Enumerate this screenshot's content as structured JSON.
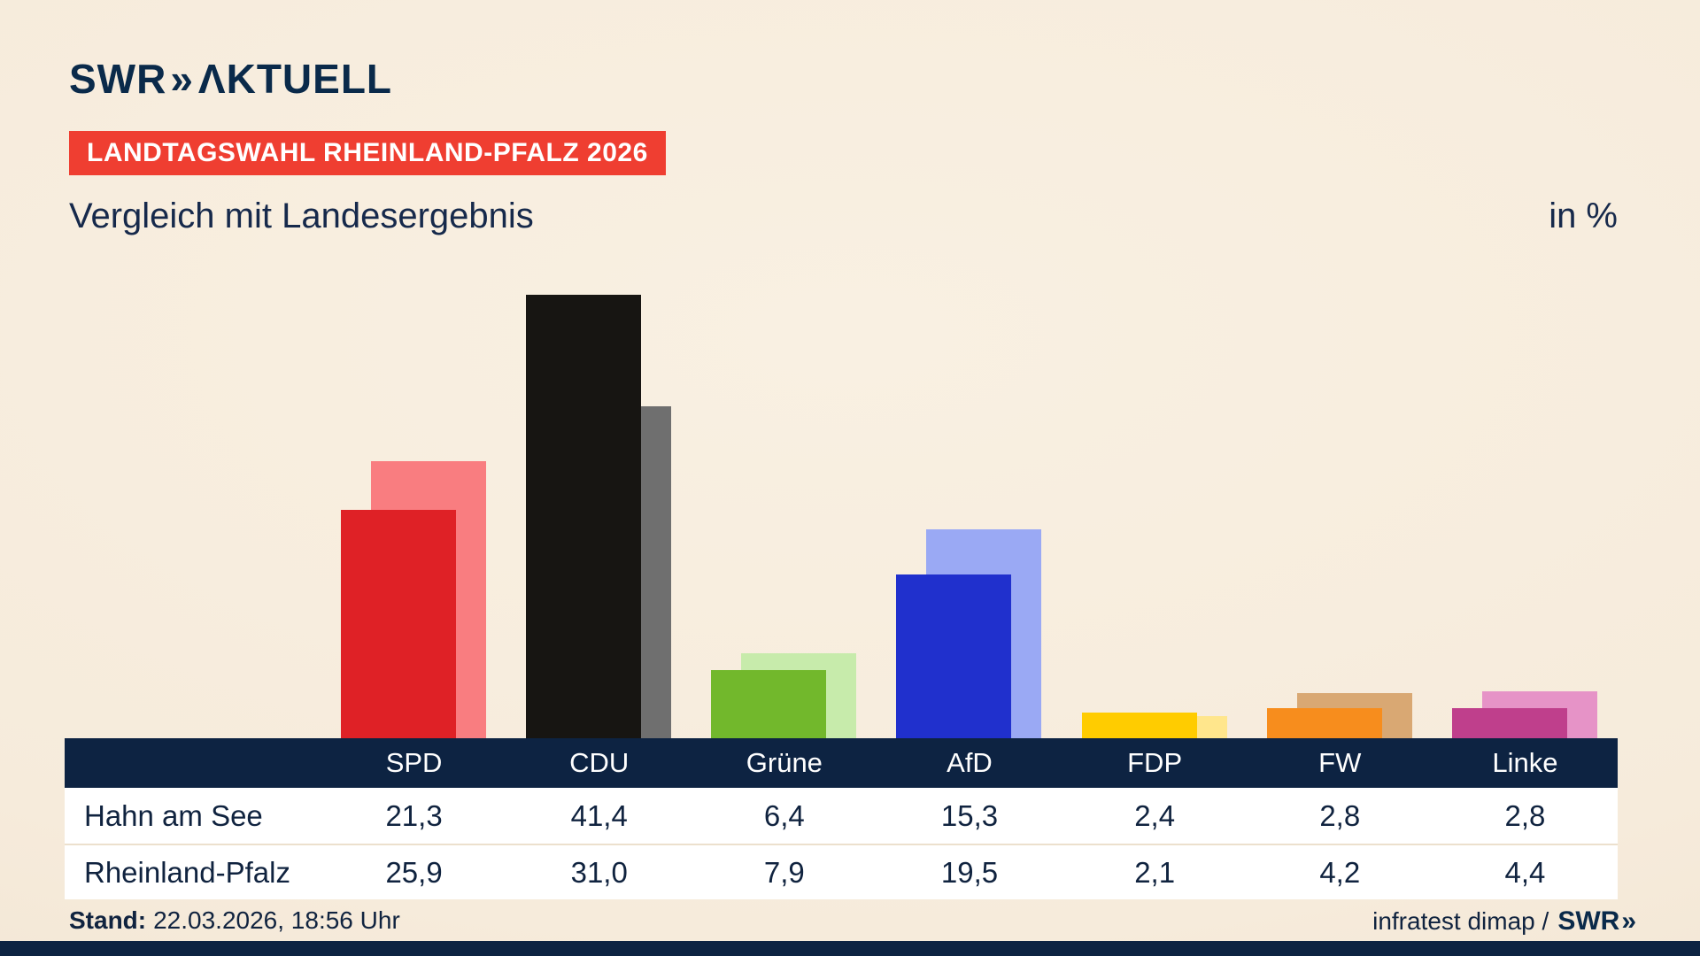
{
  "meta": {
    "brand": "SWR",
    "brand_chevrons": "»",
    "brand_suffix": "ΛKTUELL",
    "badge": "LANDTAGSWAHL RHEINLAND-PFALZ 2026",
    "title": "Vergleich mit Landesergebnis",
    "unit_label": "in %",
    "stand_label": "Stand:",
    "stand_value": "22.03.2026, 18:56 Uhr",
    "source_text": "infratest dimap /",
    "source_brand": "SWR"
  },
  "colors": {
    "navy": "#0d2342",
    "badge_red": "#ef3e31",
    "background": "#f7eedf"
  },
  "chart_data": {
    "type": "bar",
    "title": "Vergleich mit Landesergebnis",
    "unit": "%",
    "categories": [
      "SPD",
      "CDU",
      "Grüne",
      "AfD",
      "FDP",
      "FW",
      "Linke"
    ],
    "series": [
      {
        "name": "Hahn am See",
        "values": [
          21.3,
          41.4,
          6.4,
          15.3,
          2.4,
          2.8,
          2.8
        ]
      },
      {
        "name": "Rheinland-Pfalz",
        "values": [
          25.9,
          31.0,
          7.9,
          19.5,
          2.1,
          4.2,
          4.4
        ]
      }
    ],
    "colors": {
      "front": [
        "#df2126",
        "#171512",
        "#72b82c",
        "#2030cd",
        "#ffcc00",
        "#f78d1d",
        "#bf3f8c"
      ],
      "back": [
        "#f97d80",
        "#6f6f6f",
        "#c7ebab",
        "#9aa9f4",
        "#ffe68c",
        "#d9a873",
        "#e693c7"
      ]
    },
    "ylim": [
      0,
      45
    ],
    "grid": false,
    "legend": "table-below"
  },
  "table": {
    "row_labels": [
      "Hahn am See",
      "Rheinland-Pfalz"
    ],
    "display_values": [
      [
        "21,3",
        "41,4",
        "6,4",
        "15,3",
        "2,4",
        "2,8",
        "2,8"
      ],
      [
        "25,9",
        "31,0",
        "7,9",
        "19,5",
        "2,1",
        "4,2",
        "4,4"
      ]
    ]
  }
}
